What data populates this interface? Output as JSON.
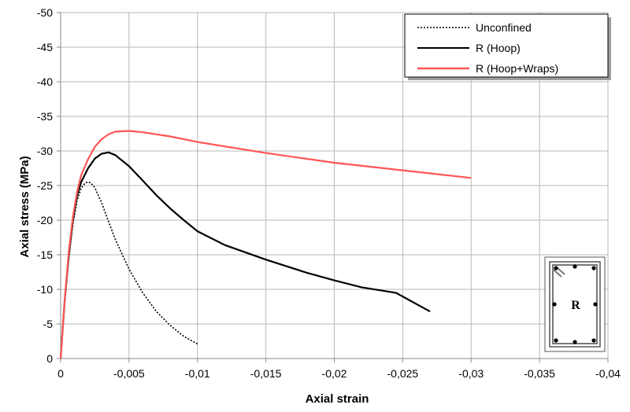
{
  "chart_data": {
    "type": "line",
    "xlabel": "Axial strain",
    "ylabel": "Axial stress (MPa)",
    "xlim": [
      0,
      -0.04
    ],
    "ylim": [
      0,
      -50
    ],
    "x_ticks": [
      "0",
      "-0,005",
      "-0,01",
      "-0,015",
      "-0,02",
      "-0,025",
      "-0,03",
      "-0,035",
      "-0,04"
    ],
    "y_ticks": [
      "0",
      "-5",
      "-10",
      "-15",
      "-20",
      "-25",
      "-30",
      "-35",
      "-40",
      "-45",
      "-50"
    ],
    "grid": true,
    "legend_position": "top-right",
    "series": [
      {
        "name": "Unconfined",
        "color": "#000000",
        "style": "dotted",
        "points": [
          [
            0,
            0
          ],
          [
            -0.0003,
            -8
          ],
          [
            -0.0006,
            -14.5
          ],
          [
            -0.0009,
            -19.5
          ],
          [
            -0.0012,
            -22.8
          ],
          [
            -0.0015,
            -24.6
          ],
          [
            -0.0018,
            -25.4
          ],
          [
            -0.002,
            -25.5
          ],
          [
            -0.0022,
            -25.4
          ],
          [
            -0.0025,
            -24.7
          ],
          [
            -0.003,
            -22.5
          ],
          [
            -0.0035,
            -19.8
          ],
          [
            -0.004,
            -17.2
          ],
          [
            -0.005,
            -12.9
          ],
          [
            -0.006,
            -9.5
          ],
          [
            -0.007,
            -6.8
          ],
          [
            -0.008,
            -4.8
          ],
          [
            -0.009,
            -3.2
          ],
          [
            -0.01,
            -2.1
          ]
        ]
      },
      {
        "name": "R (Hoop)",
        "color": "#000000",
        "style": "solid",
        "points": [
          [
            0,
            0
          ],
          [
            -0.0003,
            -8.5
          ],
          [
            -0.0006,
            -15
          ],
          [
            -0.0009,
            -20
          ],
          [
            -0.0012,
            -23.5
          ],
          [
            -0.0015,
            -25.5
          ],
          [
            -0.002,
            -27.5
          ],
          [
            -0.0025,
            -28.9
          ],
          [
            -0.003,
            -29.6
          ],
          [
            -0.0035,
            -29.8
          ],
          [
            -0.004,
            -29.4
          ],
          [
            -0.005,
            -27.8
          ],
          [
            -0.006,
            -25.7
          ],
          [
            -0.007,
            -23.6
          ],
          [
            -0.008,
            -21.7
          ],
          [
            -0.009,
            -20
          ],
          [
            -0.01,
            -18.4
          ],
          [
            -0.012,
            -16.4
          ],
          [
            -0.015,
            -14.3
          ],
          [
            -0.018,
            -12.4
          ],
          [
            -0.02,
            -11.3
          ],
          [
            -0.022,
            -10.3
          ],
          [
            -0.0245,
            -9.5
          ],
          [
            -0.027,
            -6.8
          ]
        ]
      },
      {
        "name": "R (Hoop+Wraps)",
        "color": "#ff5555",
        "style": "solid",
        "points": [
          [
            0,
            0
          ],
          [
            -0.0003,
            -8.5
          ],
          [
            -0.0006,
            -15.5
          ],
          [
            -0.0009,
            -20.5
          ],
          [
            -0.0012,
            -24
          ],
          [
            -0.0015,
            -26.5
          ],
          [
            -0.002,
            -28.8
          ],
          [
            -0.0025,
            -30.6
          ],
          [
            -0.003,
            -31.7
          ],
          [
            -0.0035,
            -32.4
          ],
          [
            -0.004,
            -32.8
          ],
          [
            -0.005,
            -32.9
          ],
          [
            -0.006,
            -32.7
          ],
          [
            -0.008,
            -32.1
          ],
          [
            -0.01,
            -31.3
          ],
          [
            -0.015,
            -29.7
          ],
          [
            -0.02,
            -28.3
          ],
          [
            -0.025,
            -27.2
          ],
          [
            -0.03,
            -26.1
          ]
        ]
      }
    ]
  },
  "inset": {
    "label": "R"
  }
}
